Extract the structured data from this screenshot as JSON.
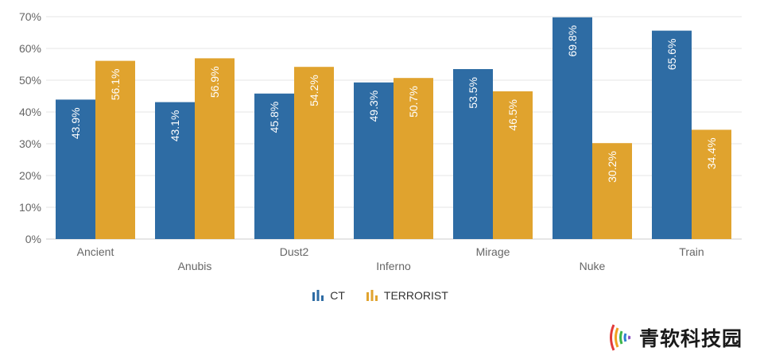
{
  "chart_data": {
    "type": "bar",
    "categories": [
      "Ancient",
      "Anubis",
      "Dust2",
      "Inferno",
      "Mirage",
      "Nuke",
      "Train"
    ],
    "series": [
      {
        "name": "CT",
        "color": "#2e6ca4",
        "values": [
          43.9,
          43.1,
          45.8,
          49.3,
          53.5,
          69.8,
          65.6
        ]
      },
      {
        "name": "TERRORIST",
        "color": "#e0a32e",
        "values": [
          56.1,
          56.9,
          54.2,
          50.7,
          46.5,
          30.2,
          34.4
        ]
      }
    ],
    "value_suffix": "%",
    "ylim": [
      0,
      70
    ],
    "yticks": [
      "0%",
      "10%",
      "20%",
      "30%",
      "40%",
      "50%",
      "60%",
      "70%"
    ],
    "grid": true,
    "legend_position": "bottom-center",
    "data_labels": "rotated inside bars"
  },
  "legend": {
    "items": [
      {
        "label": "CT",
        "color": "#2e6ca4",
        "icon": "bar-chart-icon"
      },
      {
        "label": "TERRORIST",
        "color": "#e0a32e",
        "icon": "bar-chart-icon"
      }
    ]
  },
  "watermark": {
    "text": "青软科技园",
    "icon": "signal-waves-logo-icon"
  }
}
